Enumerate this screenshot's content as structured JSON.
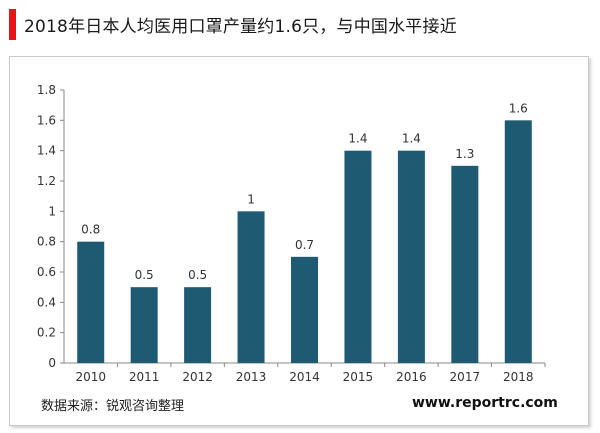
{
  "header": {
    "title": "2018年日本人均医用口罩产量约1.6只，与中国水平接近",
    "accent_color": "#e8141b"
  },
  "footer": {
    "source": "数据来源：锐观咨询整理",
    "website": "www.reportrc.com"
  },
  "chart_data": {
    "type": "bar",
    "categories": [
      "2010",
      "2011",
      "2012",
      "2013",
      "2014",
      "2015",
      "2016",
      "2017",
      "2018"
    ],
    "values": [
      0.8,
      0.5,
      0.5,
      1,
      0.7,
      1.4,
      1.4,
      1.3,
      1.6
    ],
    "data_labels": [
      "0.8",
      "0.5",
      "0.5",
      "1",
      "0.7",
      "1.4",
      "1.4",
      "1.3",
      "1.6"
    ],
    "ylim": [
      0,
      1.8
    ],
    "yticks": [
      "0",
      "0.2",
      "0.4",
      "0.6",
      "0.8",
      "1",
      "1.2",
      "1.4",
      "1.6",
      "1.8"
    ],
    "xlabel": "",
    "ylabel": "",
    "grid": false,
    "bar_color": "#1f5a73"
  }
}
